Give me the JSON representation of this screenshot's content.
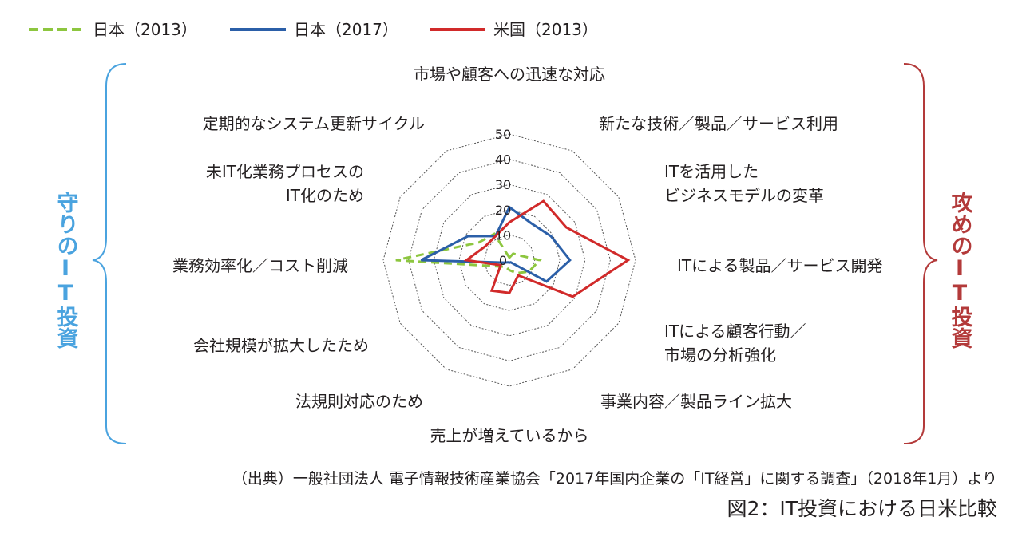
{
  "chart_data": {
    "type": "radar",
    "rmax": 50,
    "ticks": [
      0,
      10,
      20,
      30,
      40,
      50
    ],
    "categories": [
      "市場や顧客への迅速な対応",
      "新たな技術／製品／サービス利用",
      "ITを活用した\nビジネスモデルの変革",
      "ITによる製品／サービス開発",
      "ITによる顧客行動／\n市場の分析強化",
      "事業内容／製品ライン拡大",
      "売上が増えているから",
      "法規則対応のため",
      "会社規模が拡大したため",
      "業務効率化／コスト削減",
      "未IT化業務プロセスの\nIT化のため",
      "定期的なシステム更新サイクル"
    ],
    "series": [
      {
        "name": "日本（2013）",
        "color": "#8dc63f",
        "style": "dashed",
        "values": [
          1,
          3,
          4,
          12,
          9,
          6,
          4,
          3,
          5,
          45,
          14,
          12
        ]
      },
      {
        "name": "日本（2017）",
        "color": "#2b5fa8",
        "style": "solid",
        "values": [
          21,
          17,
          19,
          24,
          17,
          1,
          1,
          1,
          2,
          35,
          19,
          11
        ]
      },
      {
        "name": "米国（2013）",
        "color": "#d12a2a",
        "style": "solid",
        "values": [
          15,
          27,
          26,
          47,
          29,
          7,
          13,
          14,
          4,
          17,
          11,
          11
        ]
      }
    ]
  },
  "left_group_label": "守りのIT投資",
  "right_group_label": "攻めのIT投資",
  "left_group_color": "#4aa3df",
  "right_group_color": "#b33a3a",
  "source": "（出典）一般社団法人 電子情報技術産業協会「2017年国内企業の「IT経営」に関する調査」（2018年1月）より",
  "figure_title": "図2：IT投資における日米比較"
}
